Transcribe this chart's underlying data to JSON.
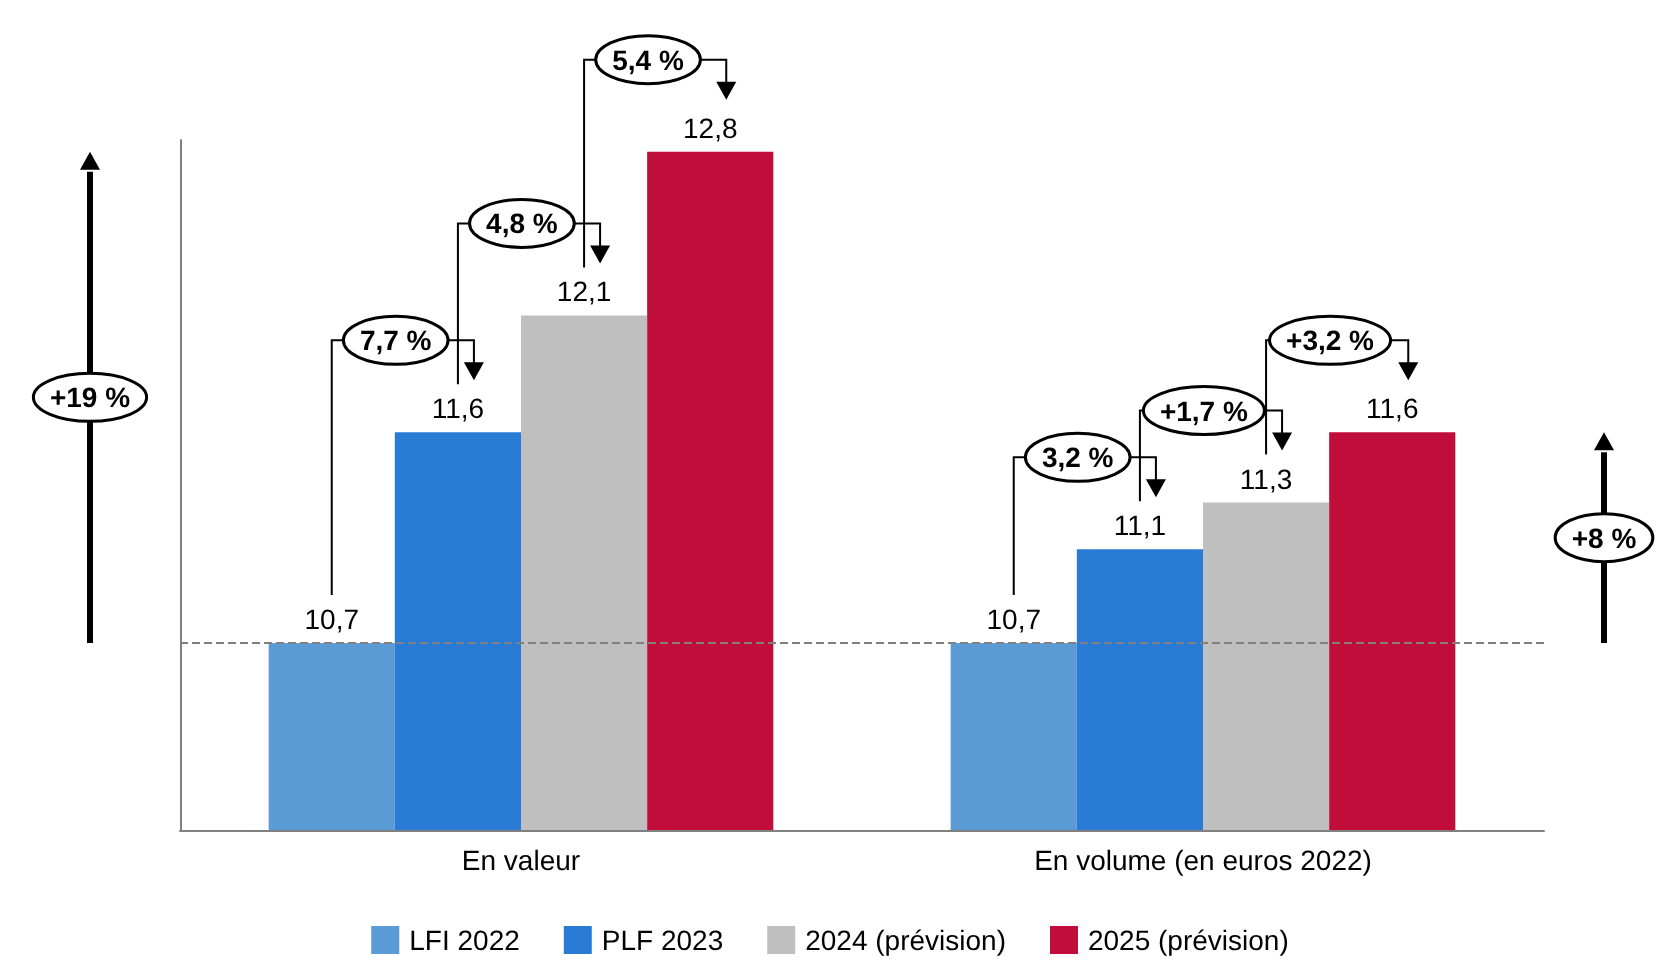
{
  "chart_data": {
    "type": "bar",
    "categories": [
      "En valeur",
      "En volume (en euros 2022)"
    ],
    "series": [
      {
        "name": "LFI 2022",
        "color": "#5b9bd5",
        "values": [
          10.7,
          10.7
        ],
        "value_labels": [
          "10,7",
          "10,7"
        ]
      },
      {
        "name": "PLF 2023",
        "color": "#2a7bd6",
        "values": [
          11.6,
          11.1
        ],
        "value_labels": [
          "11,6",
          "11,1"
        ]
      },
      {
        "name": "2024 (prévision)",
        "color": "#bfbfbf",
        "values": [
          12.1,
          11.3
        ],
        "value_labels": [
          "12,1",
          "11,3"
        ]
      },
      {
        "name": "2025 (prévision)",
        "color": "#c00d3a",
        "values": [
          12.8,
          11.6
        ],
        "value_labels": [
          "12,8",
          "11,6"
        ]
      }
    ],
    "ylim": [
      9.9,
      12.85
    ],
    "tick_labels": "x",
    "legend": "bottom",
    "grid": false,
    "ref_lines": [
      {
        "axis": "y",
        "value": 10.7,
        "line_style": "dashed",
        "color": "#808080"
      }
    ],
    "annotations": [
      "7,7 %",
      "4,8 %",
      "5,4 %",
      "+19 %",
      "3,2 %",
      "+1,7 %",
      "+3,2 %",
      "+8 %"
    ]
  }
}
